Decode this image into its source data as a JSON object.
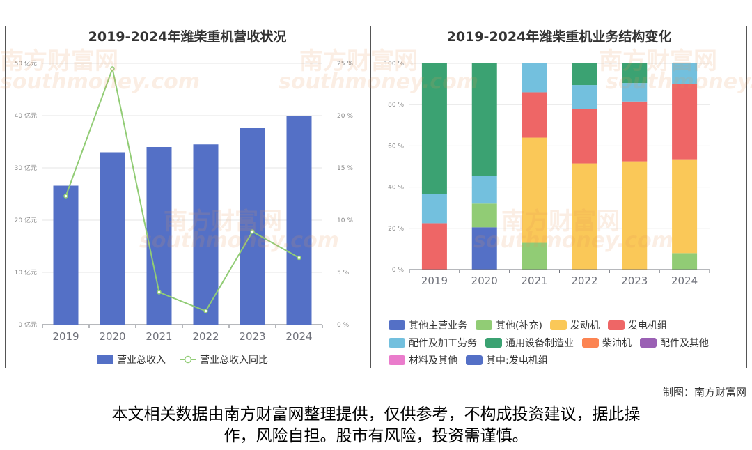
{
  "chart_data": [
    {
      "type": "bar+line",
      "title": "2019-2024年潍柴重机营收状况",
      "categories": [
        "2019",
        "2020",
        "2021",
        "2022",
        "2023",
        "2024"
      ],
      "series": [
        {
          "name": "营业总收入",
          "type": "bar",
          "axis": "left",
          "values": [
            26.6,
            33.0,
            34.0,
            34.5,
            37.6,
            40.0
          ]
        },
        {
          "name": "营业总收入同比",
          "type": "line",
          "axis": "right",
          "values": [
            12.3,
            24.5,
            3.1,
            1.3,
            8.9,
            6.4
          ]
        }
      ],
      "y_left": {
        "min": 0,
        "max": 50,
        "ticks": [
          "0 亿元",
          "10 亿元",
          "20 亿元",
          "30 亿元",
          "40 亿元",
          "50 亿元"
        ]
      },
      "y_right": {
        "min": 0,
        "max": 25,
        "ticks": [
          "0 %",
          "5 %",
          "10 %",
          "15 %",
          "20 %",
          "25 %"
        ]
      },
      "legend_position": "bottom",
      "colors": {
        "bar": "#5470c6",
        "line": "#91cc75"
      }
    },
    {
      "type": "stacked-bar-100",
      "title": "2019-2024年潍柴重机业务结构变化",
      "categories": [
        "2019",
        "2020",
        "2021",
        "2022",
        "2023",
        "2024"
      ],
      "y_ticks": [
        "0 %",
        "20 %",
        "40 %",
        "60 %",
        "80 %",
        "100 %"
      ],
      "series": [
        {
          "name": "其他主营业务",
          "color": "#5470c6",
          "values": [
            0,
            20.5,
            0,
            0,
            0,
            0
          ]
        },
        {
          "name": "其他(补充)",
          "color": "#91cc75",
          "values": [
            0,
            11.5,
            13,
            0,
            0,
            8
          ]
        },
        {
          "name": "发动机",
          "color": "#fac858",
          "values": [
            0,
            0,
            51,
            51.5,
            52.5,
            45.5
          ]
        },
        {
          "name": "发电机组",
          "color": "#ee6666",
          "values": [
            22.5,
            0,
            22,
            26.5,
            29,
            36.5
          ]
        },
        {
          "name": "配件及加工劳务",
          "color": "#73c0de",
          "values": [
            14,
            13.5,
            14,
            11.5,
            9,
            10
          ]
        },
        {
          "name": "通用设备制造业",
          "color": "#3ba272",
          "values": [
            63.5,
            54.5,
            0,
            10.5,
            9.5,
            0
          ]
        },
        {
          "name": "柴油机",
          "color": "#fc8452",
          "values": [
            0,
            0,
            0,
            0,
            0,
            0
          ]
        },
        {
          "name": "配件及其他",
          "color": "#9a60b4",
          "values": [
            0,
            0,
            0,
            0,
            0,
            0
          ]
        },
        {
          "name": "材料及其他",
          "color": "#ea7ccc",
          "values": [
            0,
            0,
            0,
            0,
            0,
            0
          ]
        },
        {
          "name": "其中:发电机组",
          "color": "#5470c6",
          "values": [
            0,
            0,
            0,
            0,
            0,
            0
          ]
        }
      ],
      "legend_position": "bottom"
    }
  ],
  "watermark": {
    "cn": "南方财富网",
    "en": "southmoney.com"
  },
  "source_label": "制图：南方财富网",
  "disclaimer": {
    "line1": "本文相关数据由南方财富网整理提供，仅供参考，不构成投资建议，据此操",
    "line2": "作，风险自担。股市有风险，投资需谨慎。"
  }
}
